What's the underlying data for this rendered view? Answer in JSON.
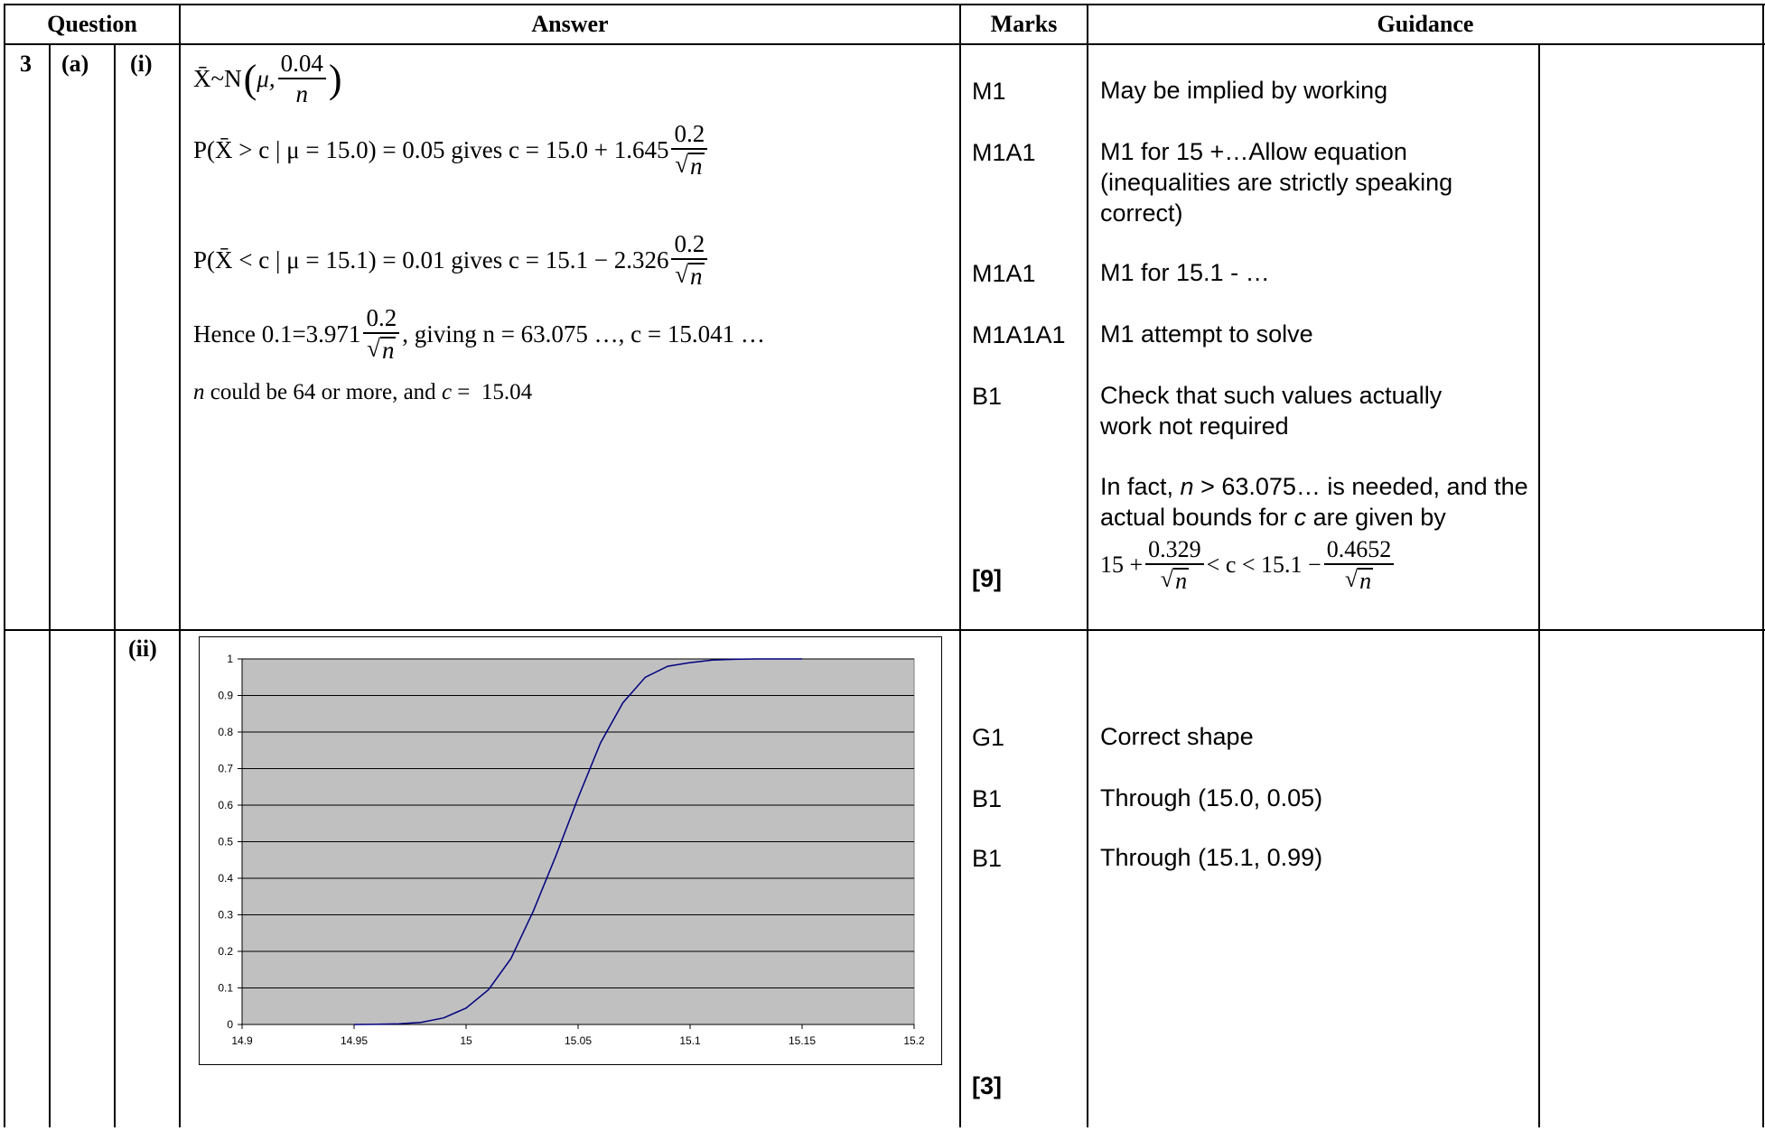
{
  "headers": {
    "question": "Question",
    "answer": "Answer",
    "marks": "Marks",
    "guidance": "Guidance"
  },
  "question": {
    "number": "3",
    "part": "(a)",
    "sub_i": "(i)",
    "sub_ii": "(ii)"
  },
  "part_i": {
    "answer_lines": {
      "line1_lhs": "X̄~N",
      "line1_mu": "μ,",
      "line1_num": "0.04",
      "line1_den": "n",
      "line2_text": "P(X̄ > c | μ = 15.0) = 0.05 gives c = 15.0 + 1.645",
      "line2_num": "0.2",
      "line2_den": "n",
      "line3_text": "P(X̄ < c | μ = 15.1) = 0.01 gives c = 15.1 − 2.326",
      "line3_num": "0.2",
      "line3_den": "n",
      "line4_pre": "Hence 0.1=3.971",
      "line4_num": "0.2",
      "line4_den": "n",
      "line4_post": ", giving n = 63.075 …, c = 15.041 …",
      "line5_n": "n",
      "line5_mid": " could be 64 or more, and ",
      "line5_c": "c",
      "line5_end": " =  15.04"
    },
    "marks": [
      "M1",
      "M1A1",
      "M1A1",
      "M1A1A1",
      "B1",
      "[9]"
    ],
    "guidance": {
      "g1": "May be implied by working",
      "g2": "M1 for 15 +…Allow equation (inequalities are strictly speaking correct)",
      "g3": "M1 for 15.1 - …",
      "g4": "M1 attempt to solve",
      "g5": "Check that such values actually work not required",
      "g6_pre": "In fact, ",
      "g6_n": "n",
      "g6_mid": " > 63.075… is needed, and the actual bounds for ",
      "g6_c": "c",
      "g6_post": " are given by",
      "g7_a": "15 +",
      "g7_num1": "0.329",
      "g7_den1": "n",
      "g7_mid": "< c < 15.1 −",
      "g7_num2": "0.4652",
      "g7_den2": "n"
    }
  },
  "part_ii": {
    "marks": [
      "G1",
      "B1",
      "B1",
      "[3]"
    ],
    "guidance": [
      "Correct shape",
      "Through (15.0, 0.05)",
      "Through (15.1, 0.99)"
    ]
  },
  "chart_data": {
    "type": "line",
    "title": "",
    "xlabel": "",
    "ylabel": "",
    "xlim": [
      14.9,
      15.2
    ],
    "ylim": [
      0,
      1
    ],
    "x_ticks": [
      "14.9",
      "14.95",
      "15",
      "15.05",
      "15.1",
      "15.15",
      "15.2"
    ],
    "y_ticks": [
      "0",
      "0.1",
      "0.2",
      "0.3",
      "0.4",
      "0.5",
      "0.6",
      "0.7",
      "0.8",
      "0.9",
      "1"
    ],
    "grid": true,
    "plot_bg": "#c0c0c0",
    "line_color": "#000080",
    "series": [
      {
        "x": [
          14.95,
          14.96,
          14.97,
          14.98,
          14.99,
          15.0,
          15.01,
          15.02,
          15.03,
          15.04,
          15.05,
          15.06,
          15.07,
          15.08,
          15.09,
          15.1,
          15.11,
          15.12,
          15.13,
          15.14,
          15.15
        ],
        "values": [
          0.0001,
          0.0005,
          0.002,
          0.006,
          0.018,
          0.045,
          0.095,
          0.18,
          0.31,
          0.46,
          0.62,
          0.77,
          0.88,
          0.95,
          0.98,
          0.99,
          0.997,
          0.999,
          1.0,
          1.0,
          1.0
        ]
      }
    ]
  }
}
